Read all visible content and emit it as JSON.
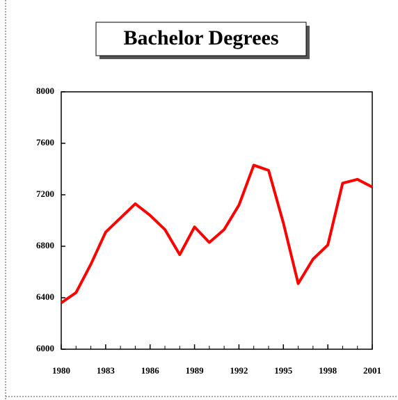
{
  "chart_data": {
    "type": "line",
    "title": "Bachelor Degrees",
    "x": [
      1980,
      1981,
      1982,
      1983,
      1984,
      1985,
      1986,
      1987,
      1988,
      1989,
      1990,
      1991,
      1992,
      1993,
      1994,
      1995,
      1996,
      1997,
      1998,
      1999,
      2000,
      2001
    ],
    "series": [
      {
        "name": "Bachelor Degrees",
        "color": "#ff0000",
        "values": [
          6360,
          6440,
          6660,
          6910,
          7020,
          7130,
          7040,
          6930,
          6735,
          6950,
          6830,
          6930,
          7120,
          7430,
          7390,
          6980,
          6510,
          6700,
          6810,
          7290,
          7320,
          7260
        ]
      }
    ],
    "xlim": [
      1980,
      2001
    ],
    "xticks": [
      1980,
      1983,
      1986,
      1989,
      1992,
      1995,
      1998,
      2001
    ],
    "ylim": [
      6000,
      8000
    ],
    "yticks": [
      6000,
      6400,
      6800,
      7200,
      7600,
      8000
    ]
  }
}
